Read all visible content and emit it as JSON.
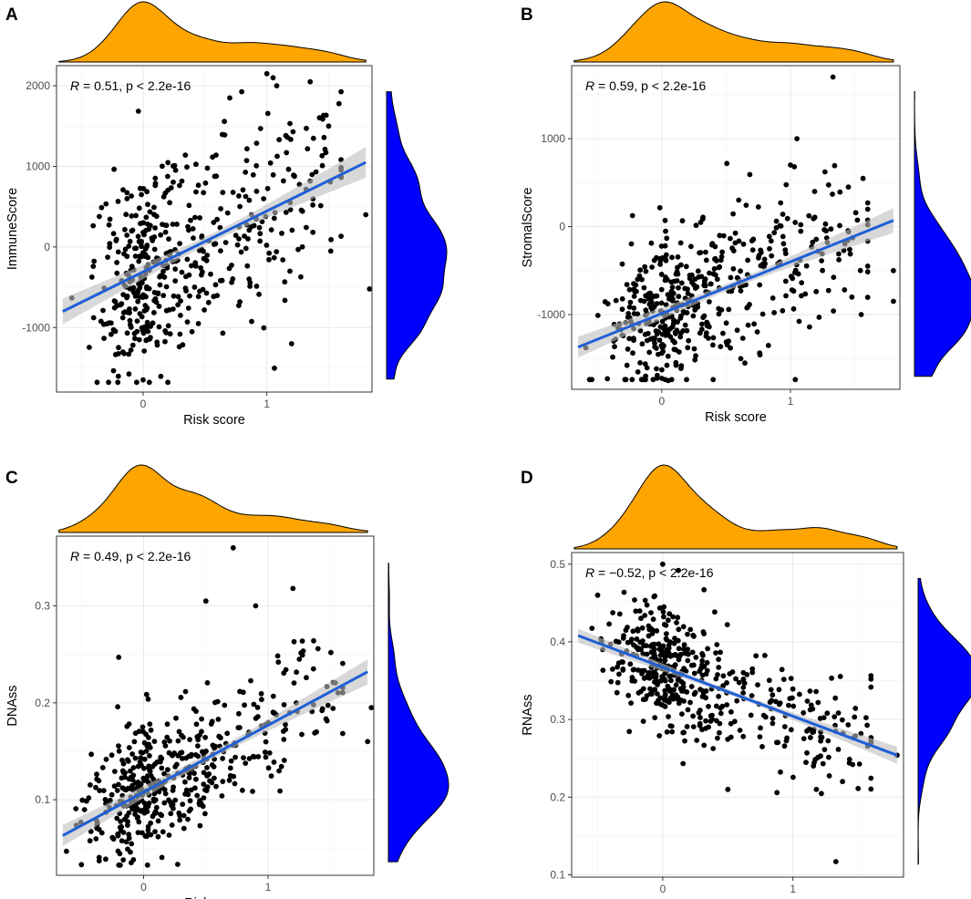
{
  "figure": {
    "panels": [
      {
        "label": "A",
        "points_seed": 11,
        "chart_data": {
          "type": "scatter",
          "title": "",
          "xlabel": "Risk score",
          "ylabel": "ImmuneScore",
          "xlim": [
            -0.7,
            1.85
          ],
          "ylim": [
            -1800,
            2250
          ],
          "xticks": [
            0,
            1
          ],
          "xtick_labels": [
            "0",
            "1"
          ],
          "yticks": [
            -1000,
            0,
            1000,
            2000
          ],
          "ytick_labels": [
            "-1000",
            "0",
            "1000",
            "2000"
          ],
          "annotation": "= 0.51, p < 2.2e-16",
          "stat": {
            "R": "0.51",
            "p": "< 2.2e-16"
          },
          "fit_line": {
            "x": [
              -0.65,
              1.8
            ],
            "y": [
              -800,
              1050
            ]
          },
          "confidence_band_halfwidth": {
            "left": 160,
            "middle": 55,
            "right": 190
          },
          "point_count": 480,
          "x_distribution": {
            "mode": 0.05,
            "sd_left": 0.22,
            "sd_right": 0.36,
            "tail_weight": 0.2,
            "tail_center": 1.15,
            "tail_sd": 0.3
          },
          "residual_sd": 640,
          "extreme_points": [
            [
              1.0,
              2150
            ],
            [
              1.05,
              2100
            ],
            [
              1.08,
              2000
            ],
            [
              1.35,
              2050
            ],
            [
              1.83,
              -520
            ],
            [
              1.2,
              -1200
            ],
            [
              0.0,
              -1650
            ],
            [
              1.5,
              1500
            ],
            [
              0.7,
              1850
            ],
            [
              1.8,
              400
            ]
          ]
        },
        "colors": {
          "top_density": "#FFA500",
          "right_density": "#0000FF",
          "fit": "#1F5FD6",
          "band": "#BEBEBE"
        }
      },
      {
        "label": "B",
        "points_seed": 23,
        "chart_data": {
          "type": "scatter",
          "title": "",
          "xlabel": "Risk score",
          "ylabel": "StromalScore",
          "xlim": [
            -0.7,
            1.85
          ],
          "ylim": [
            -1850,
            1830
          ],
          "xticks": [
            0,
            1
          ],
          "xtick_labels": [
            "0",
            "1"
          ],
          "yticks": [
            -1000,
            0,
            1000
          ],
          "ytick_labels": [
            "-1000",
            "0",
            "1000"
          ],
          "annotation": "= 0.59, p < 2.2e-16",
          "stat": {
            "R": "0.59",
            "p": "< 2.2e-16"
          },
          "fit_line": {
            "x": [
              -0.65,
              1.8
            ],
            "y": [
              -1370,
              70
            ]
          },
          "confidence_band_halfwidth": {
            "left": 120,
            "middle": 40,
            "right": 140
          },
          "point_count": 480,
          "x_distribution": {
            "mode": 0.05,
            "sd_left": 0.22,
            "sd_right": 0.36,
            "tail_weight": 0.2,
            "tail_center": 1.15,
            "tail_sd": 0.3
          },
          "residual_sd": 430,
          "extreme_points": [
            [
              1.33,
              1700
            ],
            [
              1.05,
              1000
            ],
            [
              1.0,
              700
            ],
            [
              1.03,
              680
            ],
            [
              1.8,
              -850
            ],
            [
              1.8,
              -500
            ],
            [
              0.05,
              -1750
            ],
            [
              1.45,
              450
            ],
            [
              1.55,
              -1000
            ]
          ]
        },
        "colors": {
          "top_density": "#FFA500",
          "right_density": "#0000FF",
          "fit": "#1F5FD6",
          "band": "#BEBEBE"
        }
      },
      {
        "label": "C",
        "points_seed": 37,
        "chart_data": {
          "type": "scatter",
          "title": "",
          "xlabel": "Risk score",
          "ylabel": "DNAss",
          "xlim": [
            -0.7,
            1.85
          ],
          "ylim": [
            0.022,
            0.372
          ],
          "xticks": [
            0,
            1
          ],
          "xtick_labels": [
            "0",
            "1"
          ],
          "yticks": [
            0.1,
            0.2,
            0.3
          ],
          "ytick_labels": [
            "0.1",
            "0.2",
            "0.3"
          ],
          "annotation": "= 0.49, p < 2.2e-16",
          "stat": {
            "R": "0.49",
            "p": "< 2.2e-16"
          },
          "fit_line": {
            "x": [
              -0.65,
              1.8
            ],
            "y": [
              0.063,
              0.232
            ]
          },
          "confidence_band_halfwidth": {
            "left": 0.011,
            "middle": 0.004,
            "right": 0.013
          },
          "point_count": 480,
          "x_distribution": {
            "mode": 0.05,
            "sd_left": 0.22,
            "sd_right": 0.36,
            "tail_weight": 0.2,
            "tail_center": 1.15,
            "tail_sd": 0.3
          },
          "residual_sd": 0.033,
          "extreme_points": [
            [
              0.72,
              0.36
            ],
            [
              1.2,
              0.318
            ],
            [
              1.8,
              0.16
            ],
            [
              1.83,
              0.195
            ],
            [
              0.5,
              0.305
            ],
            [
              0.9,
              0.3
            ],
            [
              -0.5,
              0.033
            ],
            [
              -0.1,
              0.035
            ],
            [
              -0.2,
              0.247
            ]
          ]
        },
        "colors": {
          "top_density": "#FFA500",
          "right_density": "#0000FF",
          "fit": "#1F5FD6",
          "band": "#BEBEBE"
        }
      },
      {
        "label": "D",
        "points_seed": 53,
        "chart_data": {
          "type": "scatter",
          "title": "",
          "xlabel": "Risk score",
          "ylabel": "RNAss",
          "xlim": [
            -0.7,
            1.85
          ],
          "ylim": [
            0.097,
            0.515
          ],
          "xticks": [
            0,
            1
          ],
          "xtick_labels": [
            "0",
            "1"
          ],
          "yticks": [
            0.1,
            0.2,
            0.3,
            0.4,
            0.5
          ],
          "ytick_labels": [
            "0.1",
            "0.2",
            "0.3",
            "0.4",
            "0.5"
          ],
          "annotation": "= −0.52, p < 2.2e-16",
          "stat": {
            "R": "−0.52",
            "p": "< 2.2e-16"
          },
          "fit_line": {
            "x": [
              -0.65,
              1.8
            ],
            "y": [
              0.408,
              0.254
            ]
          },
          "confidence_band_halfwidth": {
            "left": 0.009,
            "middle": 0.003,
            "right": 0.011
          },
          "point_count": 480,
          "x_distribution": {
            "mode": 0.05,
            "sd_left": 0.22,
            "sd_right": 0.36,
            "tail_weight": 0.2,
            "tail_center": 1.15,
            "tail_sd": 0.3
          },
          "residual_sd": 0.037,
          "extreme_points": [
            [
              1.33,
              0.117
            ],
            [
              0.0,
              0.5
            ],
            [
              0.12,
              0.492
            ],
            [
              1.8,
              0.254
            ],
            [
              -0.5,
              0.46
            ],
            [
              0.5,
              0.21
            ],
            [
              1.18,
              0.21
            ]
          ]
        },
        "colors": {
          "top_density": "#FFA500",
          "right_density": "#0000FF",
          "fit": "#1F5FD6",
          "band": "#BEBEBE"
        }
      }
    ]
  }
}
